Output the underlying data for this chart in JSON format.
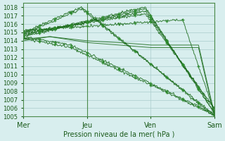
{
  "title": "",
  "xlabel": "Pression niveau de la mer( hPa )",
  "ylabel": "",
  "ylim": [
    1005,
    1018.5
  ],
  "xlim": [
    0,
    72
  ],
  "yticks": [
    1005,
    1006,
    1007,
    1008,
    1009,
    1010,
    1011,
    1012,
    1013,
    1014,
    1015,
    1016,
    1017,
    1018
  ],
  "xtick_positions": [
    0,
    24,
    48,
    72
  ],
  "xtick_labels": [
    "Mer",
    "Jeu",
    "Ven",
    "Sam"
  ],
  "bg_color": "#d8eeee",
  "grid_color": "#aacccc",
  "line_color": "#1a6b1a",
  "line_color2": "#2d8b2d",
  "vline_positions": [
    24,
    72
  ],
  "line_configs": [
    [
      22,
      1018.0,
      1005.0,
      1015.0
    ],
    [
      22,
      1017.8,
      1005.2,
      1014.8
    ],
    [
      46,
      1018.0,
      1005.3,
      1014.6
    ],
    [
      46,
      1017.8,
      1005.5,
      1014.5
    ],
    [
      46,
      1017.5,
      1005.8,
      1014.8
    ],
    [
      46,
      1017.2,
      1006.0,
      1015.0
    ],
    [
      18,
      1013.5,
      1005.3,
      1014.5
    ],
    [
      18,
      1013.2,
      1005.2,
      1014.3
    ],
    [
      60,
      1016.5,
      1005.5,
      1015.2
    ]
  ],
  "flat_configs": [
    [
      0,
      10,
      24,
      36,
      48,
      66,
      72,
      1014.0,
      1014.5,
      1014.0,
      1013.8,
      1013.5,
      1013.5,
      1005.3
    ],
    [
      0,
      10,
      24,
      36,
      48,
      66,
      72,
      1014.2,
      1014.5,
      1013.8,
      1013.5,
      1013.2,
      1013.2,
      1005.0
    ]
  ],
  "noise_std": 0.08
}
